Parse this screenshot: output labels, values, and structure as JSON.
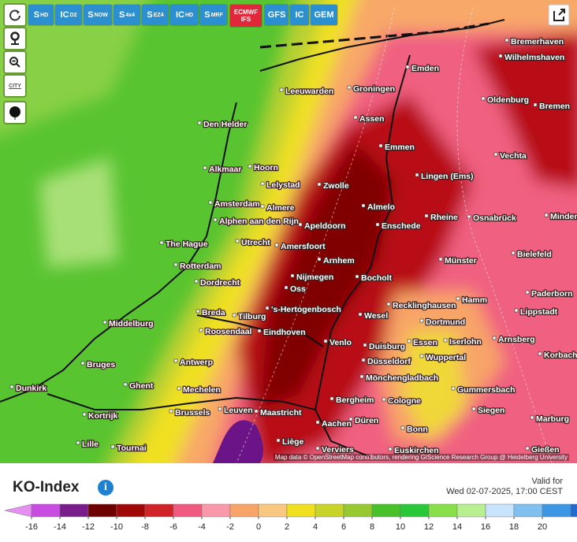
{
  "toolbar": {
    "models": [
      {
        "text": "S",
        "sub": "HD"
      },
      {
        "text": "IC",
        "sub": "D2"
      },
      {
        "text": "S",
        "sub": "NOW"
      },
      {
        "text": "S",
        "sub": "4x4"
      },
      {
        "text": "S",
        "sub": "EZ4"
      },
      {
        "text": "IC",
        "sub": "HD"
      },
      {
        "text": "S",
        "sub": "MRF"
      },
      {
        "text": "ECMWF",
        "sub": "IFS",
        "active": true
      },
      {
        "text": "GFS"
      },
      {
        "text": "IC"
      },
      {
        "text": "GEM"
      }
    ],
    "city_tool": "CITY"
  },
  "map": {
    "cities": [
      "Bremerhaven",
      "Wilhelmshaven",
      "Emden",
      "Oldenburg",
      "Bremen",
      "Leeuwarden",
      "Groningen",
      "Assen",
      "Den Helder",
      "Emmen",
      "Vechta",
      "Alkmaar",
      "Hoorn",
      "Lingen (Ems)",
      "Lelystad",
      "Zwolle",
      "Amsterdam",
      "Almere",
      "Almelo",
      "Rheine",
      "Osnabrück",
      "Minden",
      "Alphen aan den Rijn",
      "Apeldoorn",
      "Enschede",
      "The Hague",
      "Utrecht",
      "Amersfoort",
      "Bielefeld",
      "Münster",
      "Arnhem",
      "Rotterdam",
      "Nijmegen",
      "Bocholt",
      "Dordrecht",
      "Oss",
      "Hamm",
      "Paderborn",
      "Recklinghausen",
      "'s-Hertogenbosch",
      "Breda",
      "Wesel",
      "Tilburg",
      "Lippstadt",
      "Dortmund",
      "Middelburg",
      "Roosendaal",
      "Eindhoven",
      "Arnsberg",
      "Essen",
      "Iserlohn",
      "Venlo",
      "Duisburg",
      "Korbach",
      "Antwerp",
      "Düsseldorf",
      "Wuppertal",
      "Bruges",
      "Mönchengladbach",
      "Ghent",
      "Dunkirk",
      "Mechelen",
      "Gummersbach",
      "Bergheim",
      "Cologne",
      "Siegen",
      "Leuven",
      "Brussels",
      "Maastricht",
      "Kortrijk",
      "Marburg",
      "Aachen",
      "Düren",
      "Bonn",
      "Liège",
      "Lille",
      "Tournai",
      "Verviers",
      "Euskirchen",
      "Gießen"
    ],
    "attribution": "Map data © OpenStreetMap contributors, rendering GIScience Research Group @ Heidelberg University"
  },
  "legend": {
    "title": "KO-Index",
    "info": "i",
    "valid_label": "Valid for",
    "valid_time": "Wed 02-07-2025, 17:00 CEST",
    "ticks": [
      -16,
      -14,
      -12,
      -10,
      -8,
      -6,
      -4,
      -2,
      0,
      2,
      4,
      6,
      8,
      10,
      12,
      14,
      16,
      18,
      20
    ],
    "colors": [
      "#e590f0",
      "#c84ce0",
      "#7a1c8c",
      "#6e0000",
      "#a00808",
      "#d02428",
      "#f05a80",
      "#f898a8",
      "#f8a468",
      "#f8c880",
      "#f0e020",
      "#c8d428",
      "#98c830",
      "#48c028",
      "#28c838",
      "#88e048",
      "#b8f090",
      "#c8e4fc",
      "#80c0f0",
      "#3c98e4",
      "#1e6cd0",
      "#10409c"
    ]
  }
}
